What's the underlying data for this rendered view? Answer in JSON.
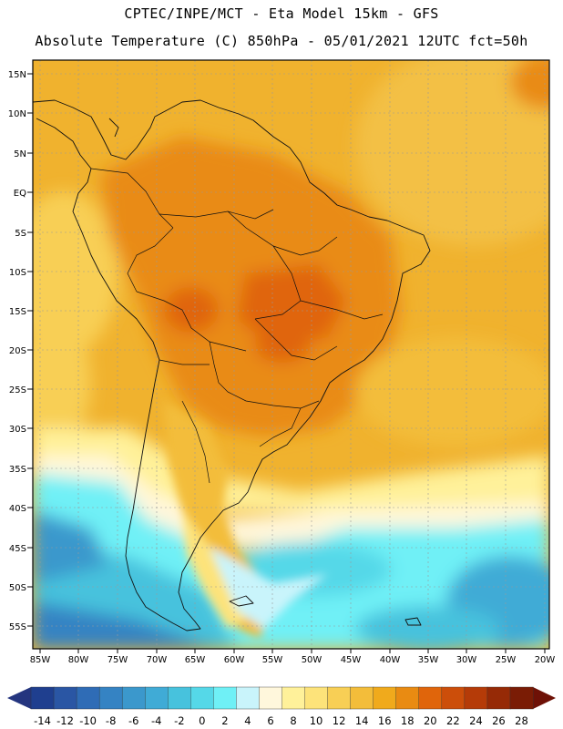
{
  "header": {
    "line1": "CPTEC/INPE/MCT -  Eta Model 15km - GFS",
    "line2": "Absolute Temperature (C) 850hPa - 05/01/2021 12UTC fct=50h"
  },
  "map": {
    "lat_ticks": [
      "15N",
      "10N",
      "5N",
      "EQ",
      "5S",
      "10S",
      "15S",
      "20S",
      "25S",
      "30S",
      "35S",
      "40S",
      "45S",
      "50S",
      "55S"
    ],
    "lon_ticks": [
      "85W",
      "80W",
      "75W",
      "70W",
      "65W",
      "60W",
      "55W",
      "50W",
      "45W",
      "40W",
      "35W",
      "30W",
      "25W",
      "20W"
    ]
  },
  "colorbar": {
    "labels": [
      "-14",
      "-12",
      "-10",
      "-8",
      "-6",
      "-4",
      "-2",
      "0",
      "2",
      "4",
      "6",
      "8",
      "10",
      "12",
      "14",
      "16",
      "18",
      "20",
      "22",
      "24",
      "26",
      "28"
    ],
    "colors": [
      "#1f3f8f",
      "#2a56a4",
      "#2f6cb6",
      "#3583c3",
      "#3b98cc",
      "#40abd6",
      "#47c2dd",
      "#55d8e8",
      "#6ff0f6",
      "#c9f4fb",
      "#fff7dc",
      "#fff19a",
      "#fde37a",
      "#f8cf55",
      "#f3bd3a",
      "#f0aa1c",
      "#e98b12",
      "#e0650b",
      "#cc4e0a",
      "#b53b08",
      "#962a06",
      "#7a1c05"
    ],
    "under_color": "#24357f",
    "over_color": "#6e1106"
  },
  "legend_colors": {
    "ocean_warm": "#eeb83a",
    "land_hot": "#e58a1a",
    "cold_sea": "#5ad6ea"
  }
}
